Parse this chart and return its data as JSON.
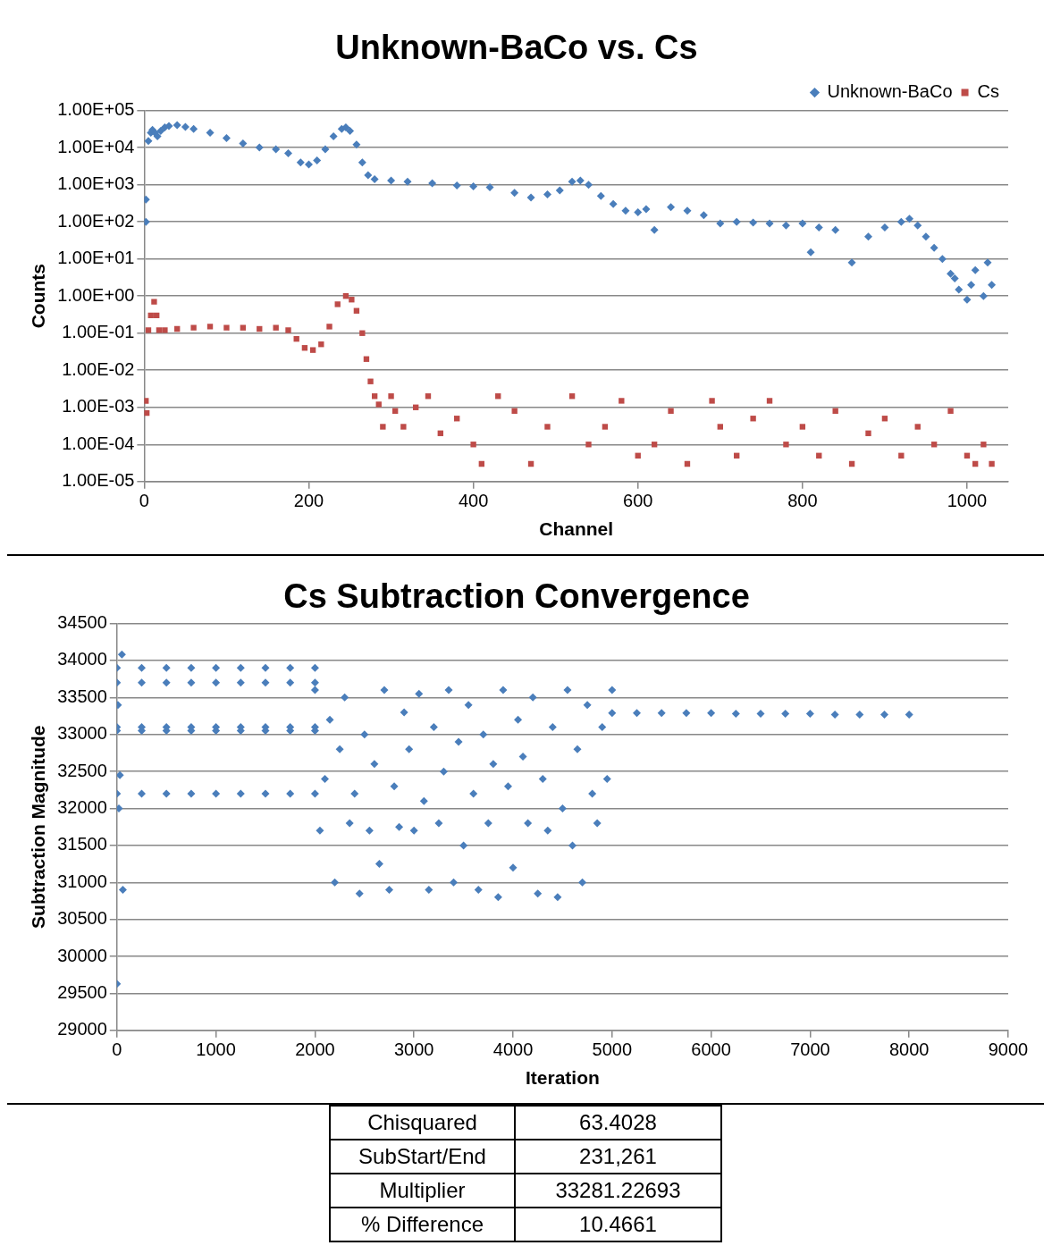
{
  "chart_data": [
    {
      "type": "scatter",
      "title": "Unknown-BaCo vs. Cs",
      "xlabel": "Channel",
      "ylabel": "Counts",
      "log": "y",
      "grid": "y",
      "legend": "top right",
      "xlim": [
        0,
        1050
      ],
      "xticks": [
        0,
        200,
        400,
        600,
        800,
        1000
      ],
      "ylim": [
        1e-05,
        100000
      ],
      "yticks": [
        {
          "value": 100000,
          "label": "1.00E+05"
        },
        {
          "value": 10000,
          "label": "1.00E+04"
        },
        {
          "value": 1000,
          "label": "1.00E+03"
        },
        {
          "value": 100,
          "label": "1.00E+02"
        },
        {
          "value": 10,
          "label": "1.00E+01"
        },
        {
          "value": 1,
          "label": "1.00E+00"
        },
        {
          "value": 0.1,
          "label": "1.00E-01"
        },
        {
          "value": 0.01,
          "label": "1.00E-02"
        },
        {
          "value": 0.001,
          "label": "1.00E-03"
        },
        {
          "value": 0.0001,
          "label": "1.00E-04"
        },
        {
          "value": 1e-05,
          "label": "1.00E-05"
        }
      ],
      "series": [
        {
          "name": "Unknown-BaCo",
          "color": "#4a7ebb",
          "marker": "diamond",
          "x": [
            2,
            2,
            5,
            8,
            10,
            13,
            16,
            20,
            25,
            30,
            40,
            50,
            60,
            80,
            100,
            120,
            140,
            160,
            175,
            190,
            200,
            210,
            220,
            230,
            240,
            245,
            250,
            258,
            265,
            272,
            280,
            300,
            320,
            350,
            380,
            400,
            420,
            450,
            470,
            490,
            505,
            520,
            530,
            540,
            555,
            570,
            585,
            600,
            610,
            620,
            640,
            660,
            680,
            700,
            720,
            740,
            760,
            780,
            800,
            810,
            820,
            840,
            860,
            880,
            900,
            920,
            930,
            940,
            950,
            960,
            970,
            980,
            985,
            990,
            1000,
            1005,
            1010,
            1020,
            1025,
            1030
          ],
          "values": [
            400,
            100,
            15000,
            25000,
            30000,
            25000,
            20000,
            28000,
            35000,
            38000,
            40000,
            36000,
            32000,
            25000,
            18000,
            13000,
            10000,
            9000,
            7000,
            4000,
            3500,
            4500,
            9000,
            20000,
            32000,
            35000,
            28000,
            12000,
            4000,
            1800,
            1400,
            1300,
            1200,
            1100,
            950,
            900,
            850,
            600,
            450,
            550,
            700,
            1200,
            1300,
            1000,
            500,
            300,
            200,
            180,
            220,
            60,
            250,
            200,
            150,
            90,
            100,
            95,
            90,
            80,
            90,
            15,
            70,
            60,
            8,
            40,
            70,
            100,
            120,
            80,
            40,
            20,
            10,
            4,
            3,
            1.5,
            0.8,
            2,
            5,
            1,
            8,
            2
          ]
        },
        {
          "name": "Cs",
          "color": "#be4b48",
          "marker": "square",
          "x": [
            2,
            3,
            5,
            8,
            12,
            15,
            18,
            25,
            40,
            60,
            80,
            100,
            120,
            140,
            160,
            175,
            185,
            195,
            205,
            215,
            225,
            235,
            245,
            252,
            258,
            265,
            270,
            275,
            280,
            285,
            290,
            300,
            305,
            315,
            330,
            345,
            360,
            380,
            400,
            410,
            430,
            450,
            470,
            490,
            520,
            540,
            560,
            580,
            600,
            620,
            640,
            660,
            690,
            700,
            720,
            740,
            760,
            780,
            800,
            820,
            840,
            860,
            880,
            900,
            920,
            940,
            960,
            980,
            1000,
            1010,
            1020,
            1030
          ],
          "values": [
            0.0015,
            0.0007,
            0.12,
            0.3,
            0.7,
            0.3,
            0.12,
            0.12,
            0.13,
            0.14,
            0.15,
            0.14,
            0.14,
            0.13,
            0.14,
            0.12,
            0.07,
            0.04,
            0.035,
            0.05,
            0.15,
            0.6,
            1,
            0.8,
            0.4,
            0.1,
            0.02,
            0.005,
            0.002,
            0.0012,
            0.0003,
            0.002,
            0.0008,
            0.0003,
            0.001,
            0.002,
            0.0002,
            0.0005,
            0.0001,
            3e-05,
            0.002,
            0.0008,
            3e-05,
            0.0003,
            0.002,
            0.0001,
            0.0003,
            0.0015,
            5e-05,
            0.0001,
            0.0008,
            3e-05,
            0.0015,
            0.0003,
            5e-05,
            0.0005,
            0.0015,
            0.0001,
            0.0003,
            5e-05,
            0.0008,
            3e-05,
            0.0002,
            0.0005,
            5e-05,
            0.0003,
            0.0001,
            0.0008,
            5e-05,
            3e-05,
            0.0001,
            3e-05
          ]
        }
      ]
    },
    {
      "type": "scatter",
      "title": "Cs Subtraction Convergence",
      "xlabel": "Iteration",
      "ylabel": "Subtraction Magnitude",
      "grid": "y",
      "xlim": [
        0,
        9000
      ],
      "xticks": [
        0,
        1000,
        2000,
        3000,
        4000,
        5000,
        6000,
        7000,
        8000,
        9000
      ],
      "ylim": [
        29000,
        34500
      ],
      "yticks": [
        29000,
        29500,
        30000,
        30500,
        31000,
        31500,
        32000,
        32500,
        33000,
        33500,
        34000,
        34500
      ],
      "series": [
        {
          "color": "#4a7ebb",
          "marker": "diamond",
          "x": [
            0,
            250,
            500,
            750,
            1000,
            1250,
            1500,
            1750,
            2000,
            0,
            250,
            500,
            750,
            1000,
            1250,
            1500,
            1750,
            2000,
            0,
            250,
            500,
            750,
            1000,
            1250,
            1500,
            1750,
            2000,
            0,
            250,
            500,
            750,
            1000,
            1250,
            1500,
            1750,
            2000,
            0,
            250,
            500,
            750,
            1000,
            1250,
            1500,
            1750,
            2000,
            0,
            50,
            60,
            20,
            30,
            10,
            2000,
            2050,
            2100,
            2150,
            2200,
            2250,
            2300,
            2350,
            2400,
            2450,
            2500,
            2550,
            2600,
            2650,
            2700,
            2750,
            2800,
            2850,
            2900,
            2950,
            3000,
            3050,
            3100,
            3150,
            3200,
            3250,
            3300,
            3350,
            3400,
            3450,
            3500,
            3550,
            3600,
            3650,
            3700,
            3750,
            3800,
            3850,
            3900,
            3950,
            4000,
            4050,
            4100,
            4150,
            4200,
            4250,
            4300,
            4350,
            4400,
            4450,
            4500,
            4550,
            4600,
            4650,
            4700,
            4750,
            4800,
            4850,
            4900,
            4950,
            5000,
            5000,
            5250,
            5500,
            5750,
            6000,
            6250,
            6500,
            6750,
            7000,
            7250,
            7500,
            7750,
            8000
          ],
          "values": [
            33900,
            33900,
            33900,
            33900,
            33900,
            33900,
            33900,
            33900,
            33900,
            33700,
            33700,
            33700,
            33700,
            33700,
            33700,
            33700,
            33700,
            33700,
            33100,
            33100,
            33100,
            33100,
            33100,
            33100,
            33100,
            33100,
            33100,
            33050,
            33050,
            33050,
            33050,
            33050,
            33050,
            33050,
            33050,
            33050,
            32200,
            32200,
            32200,
            32200,
            32200,
            32200,
            32200,
            32200,
            32200,
            29630,
            34080,
            30900,
            32000,
            32450,
            33400,
            33600,
            31700,
            32400,
            33200,
            31000,
            32800,
            33500,
            31800,
            32200,
            30850,
            33000,
            31700,
            32600,
            31250,
            33600,
            30900,
            32300,
            31750,
            33300,
            32800,
            31700,
            33550,
            32100,
            30900,
            33100,
            31800,
            32500,
            33600,
            31000,
            32900,
            31500,
            33400,
            32200,
            30900,
            33000,
            31800,
            32600,
            30800,
            33600,
            32300,
            31200,
            33200,
            32700,
            31800,
            33500,
            30850,
            32400,
            31700,
            33100,
            30800,
            32000,
            33600,
            31500,
            32800,
            31000,
            33400,
            32200,
            31800,
            33100,
            32400,
            33600,
            33290,
            33290,
            33290,
            33290,
            33290,
            33280,
            33280,
            33280,
            33280,
            33270,
            33270,
            33270,
            33270
          ]
        }
      ]
    },
    {
      "type": "other",
      "categories": [
        "Chisquared",
        "SubStart/End",
        "Multiplier",
        "% Difference"
      ],
      "value_labels": [
        "63.4028",
        "231,261",
        "33281.22693",
        "10.4661"
      ]
    }
  ]
}
